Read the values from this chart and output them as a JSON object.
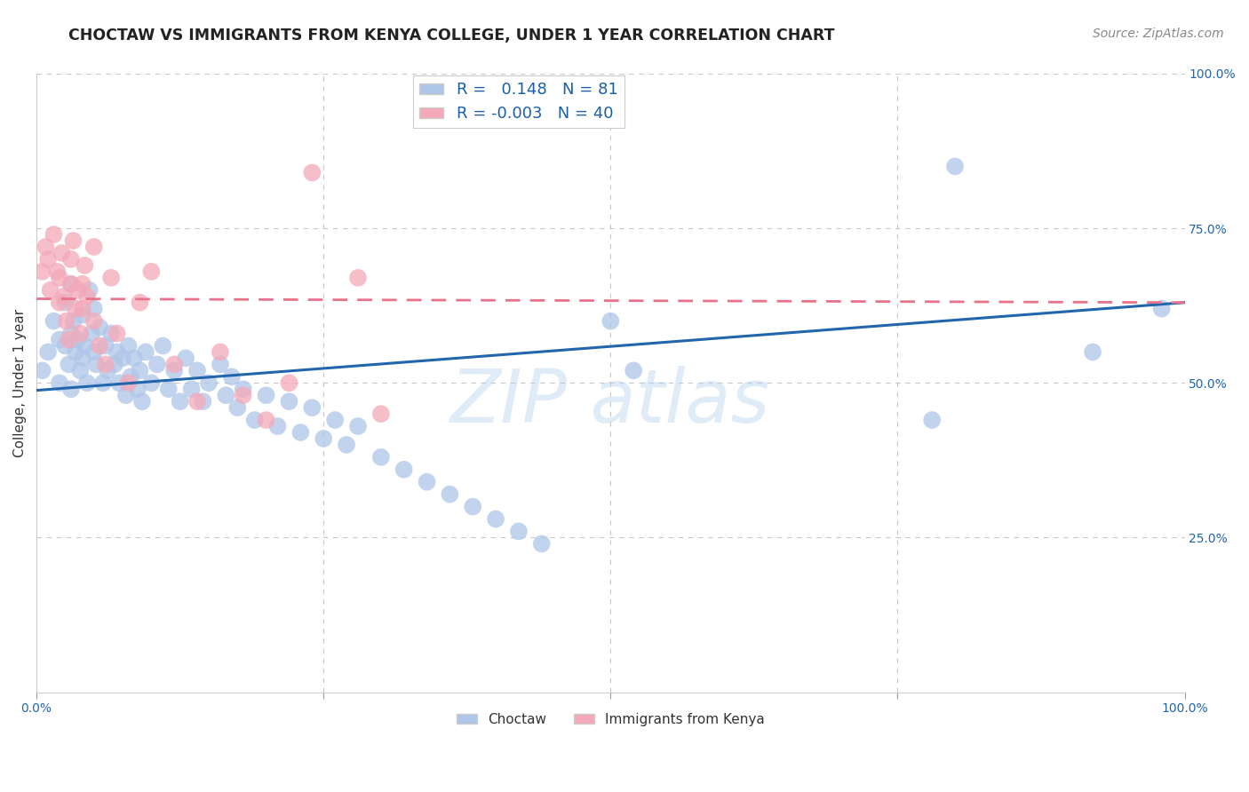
{
  "title": "CHOCTAW VS IMMIGRANTS FROM KENYA COLLEGE, UNDER 1 YEAR CORRELATION CHART",
  "source": "Source: ZipAtlas.com",
  "ylabel": "College, Under 1 year",
  "right_yticks": [
    "100.0%",
    "75.0%",
    "50.0%",
    "25.0%"
  ],
  "right_ytick_vals": [
    1.0,
    0.75,
    0.5,
    0.25
  ],
  "xlim": [
    0.0,
    1.0
  ],
  "ylim": [
    0.0,
    1.0
  ],
  "choctaw_R": 0.148,
  "choctaw_N": 81,
  "kenya_R": -0.003,
  "kenya_N": 40,
  "choctaw_color": "#aec6e8",
  "choctaw_line_color": "#2166ac",
  "kenya_color": "#f4a8b8",
  "kenya_line_color": "#e8728a",
  "background_color": "#ffffff",
  "grid_color": "#c8c8c8",
  "choctaw_x": [
    0.005,
    0.01,
    0.015,
    0.02,
    0.02,
    0.025,
    0.025,
    0.028,
    0.03,
    0.03,
    0.03,
    0.032,
    0.034,
    0.036,
    0.038,
    0.04,
    0.04,
    0.042,
    0.044,
    0.046,
    0.048,
    0.05,
    0.05,
    0.052,
    0.055,
    0.058,
    0.06,
    0.062,
    0.065,
    0.068,
    0.07,
    0.072,
    0.075,
    0.078,
    0.08,
    0.082,
    0.085,
    0.088,
    0.09,
    0.092,
    0.095,
    0.1,
    0.105,
    0.11,
    0.115,
    0.12,
    0.125,
    0.13,
    0.135,
    0.14,
    0.145,
    0.15,
    0.16,
    0.165,
    0.17,
    0.175,
    0.18,
    0.19,
    0.2,
    0.21,
    0.22,
    0.23,
    0.24,
    0.25,
    0.26,
    0.27,
    0.28,
    0.3,
    0.32,
    0.34,
    0.36,
    0.38,
    0.4,
    0.42,
    0.44,
    0.5,
    0.52,
    0.78,
    0.8,
    0.92,
    0.98
  ],
  "choctaw_y": [
    0.52,
    0.55,
    0.6,
    0.5,
    0.57,
    0.63,
    0.56,
    0.53,
    0.66,
    0.58,
    0.49,
    0.6,
    0.55,
    0.57,
    0.52,
    0.61,
    0.54,
    0.56,
    0.5,
    0.65,
    0.58,
    0.62,
    0.55,
    0.53,
    0.59,
    0.5,
    0.56,
    0.52,
    0.58,
    0.53,
    0.55,
    0.5,
    0.54,
    0.48,
    0.56,
    0.51,
    0.54,
    0.49,
    0.52,
    0.47,
    0.55,
    0.5,
    0.53,
    0.56,
    0.49,
    0.52,
    0.47,
    0.54,
    0.49,
    0.52,
    0.47,
    0.5,
    0.53,
    0.48,
    0.51,
    0.46,
    0.49,
    0.44,
    0.48,
    0.43,
    0.47,
    0.42,
    0.46,
    0.41,
    0.44,
    0.4,
    0.43,
    0.38,
    0.36,
    0.34,
    0.32,
    0.3,
    0.28,
    0.26,
    0.24,
    0.6,
    0.52,
    0.44,
    0.85,
    0.55,
    0.62
  ],
  "kenya_x": [
    0.005,
    0.008,
    0.01,
    0.012,
    0.015,
    0.018,
    0.02,
    0.02,
    0.022,
    0.024,
    0.026,
    0.028,
    0.03,
    0.03,
    0.032,
    0.034,
    0.036,
    0.038,
    0.04,
    0.04,
    0.042,
    0.044,
    0.05,
    0.05,
    0.055,
    0.06,
    0.065,
    0.07,
    0.08,
    0.09,
    0.1,
    0.12,
    0.14,
    0.16,
    0.18,
    0.2,
    0.22,
    0.24,
    0.28,
    0.3
  ],
  "kenya_y": [
    0.68,
    0.72,
    0.7,
    0.65,
    0.74,
    0.68,
    0.63,
    0.67,
    0.71,
    0.64,
    0.6,
    0.57,
    0.66,
    0.7,
    0.73,
    0.62,
    0.65,
    0.58,
    0.62,
    0.66,
    0.69,
    0.64,
    0.72,
    0.6,
    0.56,
    0.53,
    0.67,
    0.58,
    0.5,
    0.63,
    0.68,
    0.53,
    0.47,
    0.55,
    0.48,
    0.44,
    0.5,
    0.84,
    0.67,
    0.45
  ],
  "choctaw_line_x": [
    0.0,
    1.0
  ],
  "choctaw_line_y": [
    0.488,
    0.63
  ],
  "kenya_line_x": [
    0.0,
    1.0
  ],
  "kenya_line_y": [
    0.636,
    0.63
  ]
}
